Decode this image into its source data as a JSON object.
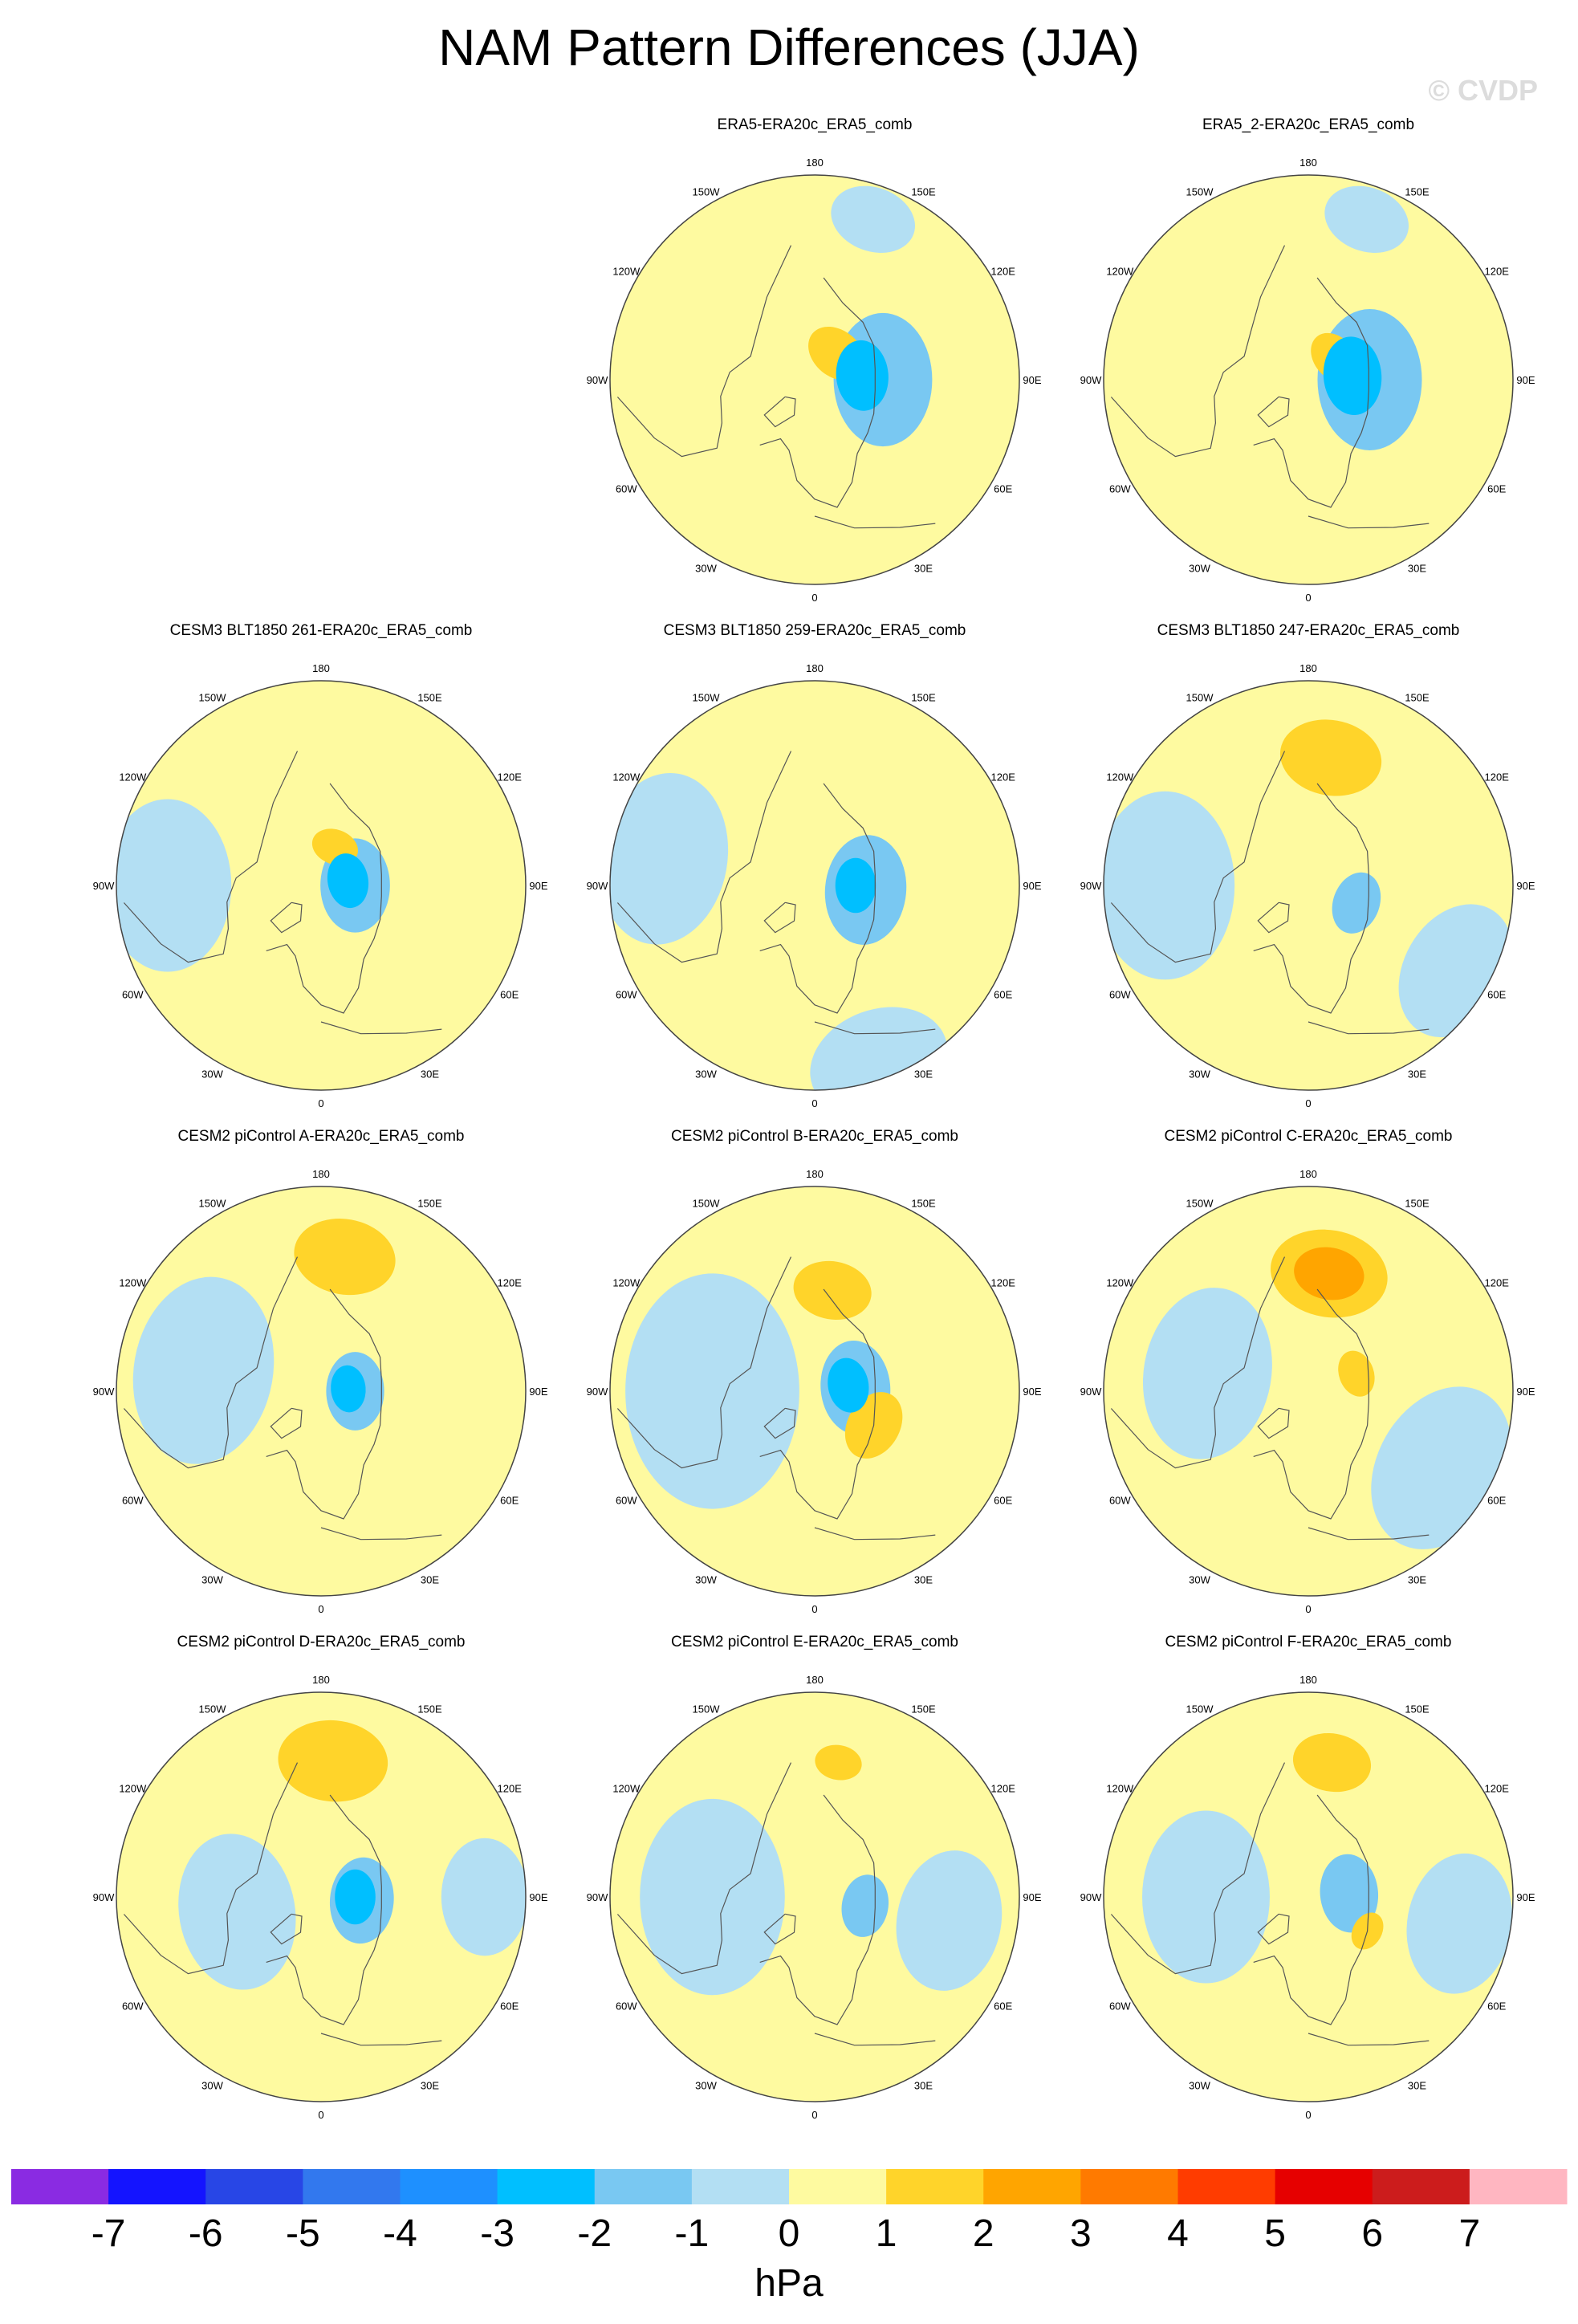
{
  "page": {
    "title": "NAM Pattern Differences (JJA)",
    "watermark": "© CVDP"
  },
  "chart_data": [
    {
      "type": "heatmap",
      "title": "ERA5-ERA20c_ERA5_comb",
      "projection": "north-polar-stereographic",
      "lon_labels": [
        "180",
        "150W",
        "150E",
        "120W",
        "120E",
        "90W",
        "90E",
        "60W",
        "60E",
        "30W",
        "30E",
        "0"
      ],
      "features": [
        {
          "sign": "neg",
          "level": 1,
          "lon": 90,
          "colat": 20,
          "r": 17
        },
        {
          "sign": "neg",
          "level": 2,
          "lon": 95,
          "colat": 14,
          "r": 9
        },
        {
          "sign": "pos",
          "level": 1,
          "lon": 140,
          "colat": 10,
          "r": 8
        },
        {
          "sign": "neg",
          "level": 0,
          "lon": 160,
          "colat": 50,
          "r": 11
        }
      ]
    },
    {
      "type": "heatmap",
      "title": "ERA5_2-ERA20c_ERA5_comb",
      "projection": "north-polar-stereographic",
      "lon_labels": [
        "180",
        "150W",
        "150E",
        "120W",
        "120E",
        "90W",
        "90E",
        "60W",
        "60E",
        "30W",
        "30E",
        "0"
      ],
      "features": [
        {
          "sign": "neg",
          "level": 1,
          "lon": 90,
          "colat": 18,
          "r": 18
        },
        {
          "sign": "neg",
          "level": 2,
          "lon": 95,
          "colat": 13,
          "r": 10
        },
        {
          "sign": "pos",
          "level": 1,
          "lon": 130,
          "colat": 10,
          "r": 7
        },
        {
          "sign": "neg",
          "level": 0,
          "lon": 160,
          "colat": 50,
          "r": 11
        }
      ]
    },
    {
      "type": "heatmap",
      "title": "CESM3 BLT1850 261-ERA20c_ERA5_comb",
      "projection": "north-polar-stereographic",
      "lon_labels": [
        "180",
        "150W",
        "150E",
        "120W",
        "120E",
        "90W",
        "90E",
        "60W",
        "60E",
        "30W",
        "30E",
        "0"
      ],
      "features": [
        {
          "sign": "neg",
          "level": 0,
          "lon": -90,
          "colat": 45,
          "r": 22
        },
        {
          "sign": "neg",
          "level": 1,
          "lon": 90,
          "colat": 10,
          "r": 12
        },
        {
          "sign": "neg",
          "level": 2,
          "lon": 100,
          "colat": 8,
          "r": 7
        },
        {
          "sign": "pos",
          "level": 1,
          "lon": 160,
          "colat": 12,
          "r": 6
        }
      ]
    },
    {
      "type": "heatmap",
      "title": "CESM3 BLT1850 259-ERA20c_ERA5_comb",
      "projection": "north-polar-stereographic",
      "lon_labels": [
        "180",
        "150W",
        "150E",
        "120W",
        "120E",
        "90W",
        "90E",
        "60W",
        "60E",
        "30W",
        "30E",
        "0"
      ],
      "features": [
        {
          "sign": "neg",
          "level": 0,
          "lon": -100,
          "colat": 45,
          "r": 22
        },
        {
          "sign": "neg",
          "level": 1,
          "lon": 85,
          "colat": 15,
          "r": 14
        },
        {
          "sign": "neg",
          "level": 2,
          "lon": 90,
          "colat": 12,
          "r": 7
        },
        {
          "sign": "neg",
          "level": 0,
          "lon": 20,
          "colat": 55,
          "r": 18
        }
      ]
    },
    {
      "type": "heatmap",
      "title": "CESM3 BLT1850 247-ERA20c_ERA5_comb",
      "projection": "north-polar-stereographic",
      "lon_labels": [
        "180",
        "150W",
        "150E",
        "120W",
        "120E",
        "90W",
        "90E",
        "60W",
        "60E",
        "30W",
        "30E",
        "0"
      ],
      "features": [
        {
          "sign": "neg",
          "level": 0,
          "lon": -90,
          "colat": 42,
          "r": 24
        },
        {
          "sign": "pos",
          "level": 1,
          "lon": 170,
          "colat": 38,
          "r": 13
        },
        {
          "sign": "neg",
          "level": 1,
          "lon": 70,
          "colat": 15,
          "r": 8
        },
        {
          "sign": "neg",
          "level": 0,
          "lon": 60,
          "colat": 50,
          "r": 18
        }
      ]
    },
    {
      "type": "heatmap",
      "title": "CESM2 piControl A-ERA20c_ERA5_comb",
      "projection": "north-polar-stereographic",
      "lon_labels": [
        "180",
        "150W",
        "150E",
        "120W",
        "120E",
        "90W",
        "90E",
        "60W",
        "60E",
        "30W",
        "30E",
        "0"
      ],
      "features": [
        {
          "sign": "neg",
          "level": 0,
          "lon": -100,
          "colat": 35,
          "r": 24
        },
        {
          "sign": "pos",
          "level": 1,
          "lon": 170,
          "colat": 40,
          "r": 13
        },
        {
          "sign": "neg",
          "level": 1,
          "lon": 90,
          "colat": 10,
          "r": 10
        },
        {
          "sign": "neg",
          "level": 2,
          "lon": 95,
          "colat": 8,
          "r": 6
        }
      ]
    },
    {
      "type": "heatmap",
      "title": "CESM2 piControl B-ERA20c_ERA5_comb",
      "projection": "north-polar-stereographic",
      "lon_labels": [
        "180",
        "150W",
        "150E",
        "120W",
        "120E",
        "90W",
        "90E",
        "60W",
        "60E",
        "30W",
        "30E",
        "0"
      ],
      "features": [
        {
          "sign": "neg",
          "level": 0,
          "lon": -90,
          "colat": 30,
          "r": 30
        },
        {
          "sign": "neg",
          "level": 1,
          "lon": 95,
          "colat": 12,
          "r": 12
        },
        {
          "sign": "neg",
          "level": 2,
          "lon": 100,
          "colat": 10,
          "r": 7
        },
        {
          "sign": "pos",
          "level": 1,
          "lon": 170,
          "colat": 30,
          "r": 10
        },
        {
          "sign": "pos",
          "level": 1,
          "lon": 60,
          "colat": 20,
          "r": 9
        }
      ]
    },
    {
      "type": "heatmap",
      "title": "CESM2 piControl C-ERA20c_ERA5_comb",
      "projection": "north-polar-stereographic",
      "lon_labels": [
        "180",
        "150W",
        "150E",
        "120W",
        "120E",
        "90W",
        "90E",
        "60W",
        "60E",
        "30W",
        "30E",
        "0"
      ],
      "features": [
        {
          "sign": "neg",
          "level": 0,
          "lon": -100,
          "colat": 30,
          "r": 22
        },
        {
          "sign": "neg",
          "level": 0,
          "lon": 60,
          "colat": 45,
          "r": 22
        },
        {
          "sign": "pos",
          "level": 1,
          "lon": 170,
          "colat": 35,
          "r": 15
        },
        {
          "sign": "pos",
          "level": 2,
          "lon": 170,
          "colat": 35,
          "r": 9
        },
        {
          "sign": "pos",
          "level": 1,
          "lon": 110,
          "colat": 15,
          "r": 6
        }
      ]
    },
    {
      "type": "heatmap",
      "title": "CESM2 piControl D-ERA20c_ERA5_comb",
      "projection": "north-polar-stereographic",
      "lon_labels": [
        "180",
        "150W",
        "150E",
        "120W",
        "120E",
        "90W",
        "90E",
        "60W",
        "60E",
        "30W",
        "30E",
        "0"
      ],
      "features": [
        {
          "sign": "neg",
          "level": 0,
          "lon": -80,
          "colat": 25,
          "r": 20
        },
        {
          "sign": "neg",
          "level": 0,
          "lon": 90,
          "colat": 48,
          "r": 15
        },
        {
          "sign": "pos",
          "level": 1,
          "lon": 175,
          "colat": 40,
          "r": 14
        },
        {
          "sign": "neg",
          "level": 1,
          "lon": 85,
          "colat": 12,
          "r": 11
        },
        {
          "sign": "neg",
          "level": 2,
          "lon": 90,
          "colat": 10,
          "r": 7
        }
      ]
    },
    {
      "type": "heatmap",
      "title": "CESM2 piControl E-ERA20c_ERA5_comb",
      "projection": "north-polar-stereographic",
      "lon_labels": [
        "180",
        "150W",
        "150E",
        "120W",
        "120E",
        "90W",
        "90E",
        "60W",
        "60E",
        "30W",
        "30E",
        "0"
      ],
      "features": [
        {
          "sign": "neg",
          "level": 0,
          "lon": -90,
          "colat": 30,
          "r": 25
        },
        {
          "sign": "neg",
          "level": 0,
          "lon": 80,
          "colat": 40,
          "r": 18
        },
        {
          "sign": "pos",
          "level": 1,
          "lon": 170,
          "colat": 40,
          "r": 6
        },
        {
          "sign": "neg",
          "level": 1,
          "lon": 80,
          "colat": 15,
          "r": 8
        }
      ]
    },
    {
      "type": "heatmap",
      "title": "CESM2 piControl F-ERA20c_ERA5_comb",
      "projection": "north-polar-stereographic",
      "lon_labels": [
        "180",
        "150W",
        "150E",
        "120W",
        "120E",
        "90W",
        "90E",
        "60W",
        "60E",
        "30W",
        "30E",
        "0"
      ],
      "features": [
        {
          "sign": "neg",
          "level": 0,
          "lon": -90,
          "colat": 30,
          "r": 22
        },
        {
          "sign": "neg",
          "level": 0,
          "lon": 80,
          "colat": 45,
          "r": 18
        },
        {
          "sign": "pos",
          "level": 1,
          "lon": 170,
          "colat": 40,
          "r": 10
        },
        {
          "sign": "neg",
          "level": 1,
          "lon": 95,
          "colat": 12,
          "r": 10
        },
        {
          "sign": "pos",
          "level": 1,
          "lon": 60,
          "colat": 20,
          "r": 5
        }
      ]
    }
  ],
  "colorbar": {
    "unit": "hPa",
    "levels": [
      "-7",
      "-6",
      "-5",
      "-4",
      "-3",
      "-2",
      "-1",
      "0",
      "1",
      "2",
      "3",
      "4",
      "5",
      "6",
      "7"
    ],
    "colors": [
      "#8a2be2",
      "#1414ff",
      "#2846e6",
      "#3278ee",
      "#1e90ff",
      "#00bfff",
      "#79c8f2",
      "#b3dff3",
      "#fefaa0",
      "#ffd42a",
      "#ffa500",
      "#ff7a00",
      "#ff3c00",
      "#e60000",
      "#cc1c1c",
      "#ffb6c1"
    ]
  }
}
